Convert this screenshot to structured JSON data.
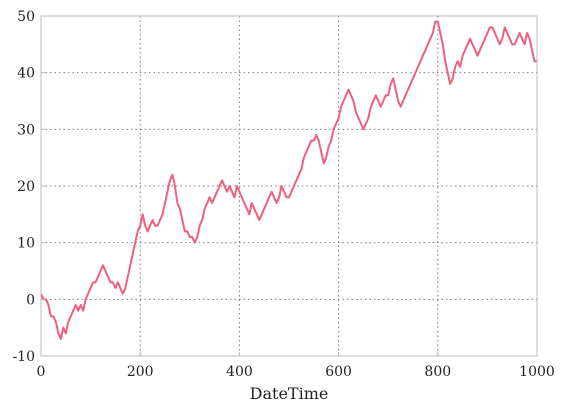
{
  "chart_data": {
    "type": "line",
    "xlabel": "DateTime",
    "ylabel": "",
    "xlim": [
      0,
      1000
    ],
    "ylim": [
      -10,
      50
    ],
    "xticks": [
      0,
      200,
      400,
      600,
      800,
      1000
    ],
    "yticks": [
      -10,
      0,
      10,
      20,
      30,
      40,
      50
    ],
    "grid": true,
    "legend": "none",
    "series": [
      {
        "color": "#f0607e",
        "points": [
          [
            0,
            1
          ],
          [
            5,
            0
          ],
          [
            10,
            0
          ],
          [
            15,
            -1
          ],
          [
            20,
            -3
          ],
          [
            25,
            -3
          ],
          [
            30,
            -4
          ],
          [
            35,
            -6
          ],
          [
            40,
            -7
          ],
          [
            45,
            -5
          ],
          [
            50,
            -6
          ],
          [
            55,
            -4
          ],
          [
            60,
            -3
          ],
          [
            65,
            -2
          ],
          [
            70,
            -1
          ],
          [
            75,
            -2
          ],
          [
            80,
            -1
          ],
          [
            85,
            -2
          ],
          [
            90,
            0
          ],
          [
            95,
            1
          ],
          [
            100,
            2
          ],
          [
            105,
            3
          ],
          [
            110,
            3
          ],
          [
            115,
            4
          ],
          [
            120,
            5
          ],
          [
            125,
            6
          ],
          [
            130,
            5
          ],
          [
            135,
            4
          ],
          [
            140,
            3
          ],
          [
            145,
            3
          ],
          [
            150,
            2
          ],
          [
            155,
            3
          ],
          [
            160,
            2
          ],
          [
            165,
            1
          ],
          [
            170,
            2
          ],
          [
            175,
            4
          ],
          [
            180,
            6
          ],
          [
            185,
            8
          ],
          [
            190,
            10
          ],
          [
            195,
            12
          ],
          [
            200,
            13
          ],
          [
            205,
            15
          ],
          [
            210,
            13
          ],
          [
            215,
            12
          ],
          [
            220,
            13
          ],
          [
            225,
            14
          ],
          [
            230,
            13
          ],
          [
            235,
            13
          ],
          [
            240,
            14
          ],
          [
            245,
            15
          ],
          [
            250,
            17
          ],
          [
            255,
            19
          ],
          [
            260,
            21
          ],
          [
            265,
            22
          ],
          [
            270,
            20
          ],
          [
            275,
            17
          ],
          [
            280,
            16
          ],
          [
            285,
            14
          ],
          [
            290,
            12
          ],
          [
            295,
            12
          ],
          [
            300,
            11
          ],
          [
            305,
            11
          ],
          [
            310,
            10
          ],
          [
            315,
            11
          ],
          [
            320,
            13
          ],
          [
            325,
            14
          ],
          [
            330,
            16
          ],
          [
            335,
            17
          ],
          [
            340,
            18
          ],
          [
            345,
            17
          ],
          [
            350,
            18
          ],
          [
            355,
            19
          ],
          [
            360,
            20
          ],
          [
            365,
            21
          ],
          [
            370,
            20
          ],
          [
            375,
            19
          ],
          [
            380,
            20
          ],
          [
            385,
            19
          ],
          [
            390,
            18
          ],
          [
            395,
            20
          ],
          [
            400,
            19
          ],
          [
            405,
            18
          ],
          [
            410,
            17
          ],
          [
            415,
            16
          ],
          [
            420,
            15
          ],
          [
            425,
            17
          ],
          [
            430,
            16
          ],
          [
            435,
            15
          ],
          [
            440,
            14
          ],
          [
            445,
            15
          ],
          [
            450,
            16
          ],
          [
            455,
            17
          ],
          [
            460,
            18
          ],
          [
            465,
            19
          ],
          [
            470,
            18
          ],
          [
            475,
            17
          ],
          [
            480,
            18
          ],
          [
            485,
            20
          ],
          [
            490,
            19
          ],
          [
            495,
            18
          ],
          [
            500,
            18
          ],
          [
            505,
            19
          ],
          [
            510,
            20
          ],
          [
            515,
            21
          ],
          [
            520,
            22
          ],
          [
            525,
            23
          ],
          [
            530,
            25
          ],
          [
            535,
            26
          ],
          [
            540,
            27
          ],
          [
            545,
            28
          ],
          [
            550,
            28
          ],
          [
            555,
            29
          ],
          [
            560,
            28
          ],
          [
            565,
            26
          ],
          [
            570,
            24
          ],
          [
            575,
            25
          ],
          [
            580,
            27
          ],
          [
            585,
            28
          ],
          [
            590,
            30
          ],
          [
            595,
            31
          ],
          [
            600,
            32
          ],
          [
            605,
            34
          ],
          [
            610,
            35
          ],
          [
            615,
            36
          ],
          [
            620,
            37
          ],
          [
            625,
            36
          ],
          [
            630,
            35
          ],
          [
            635,
            33
          ],
          [
            640,
            32
          ],
          [
            645,
            31
          ],
          [
            650,
            30
          ],
          [
            655,
            31
          ],
          [
            660,
            32
          ],
          [
            665,
            34
          ],
          [
            670,
            35
          ],
          [
            675,
            36
          ],
          [
            680,
            35
          ],
          [
            685,
            34
          ],
          [
            690,
            35
          ],
          [
            695,
            36
          ],
          [
            700,
            36
          ],
          [
            705,
            38
          ],
          [
            710,
            39
          ],
          [
            715,
            37
          ],
          [
            720,
            35
          ],
          [
            725,
            34
          ],
          [
            730,
            35
          ],
          [
            735,
            36
          ],
          [
            740,
            37
          ],
          [
            745,
            38
          ],
          [
            750,
            39
          ],
          [
            755,
            40
          ],
          [
            760,
            41
          ],
          [
            765,
            42
          ],
          [
            770,
            43
          ],
          [
            775,
            44
          ],
          [
            780,
            45
          ],
          [
            785,
            46
          ],
          [
            790,
            47
          ],
          [
            795,
            49
          ],
          [
            800,
            49
          ],
          [
            805,
            47
          ],
          [
            810,
            45
          ],
          [
            815,
            42
          ],
          [
            820,
            40
          ],
          [
            825,
            38
          ],
          [
            830,
            39
          ],
          [
            835,
            41
          ],
          [
            840,
            42
          ],
          [
            845,
            41
          ],
          [
            850,
            43
          ],
          [
            855,
            44
          ],
          [
            860,
            45
          ],
          [
            865,
            46
          ],
          [
            870,
            45
          ],
          [
            875,
            44
          ],
          [
            880,
            43
          ],
          [
            885,
            44
          ],
          [
            890,
            45
          ],
          [
            895,
            46
          ],
          [
            900,
            47
          ],
          [
            905,
            48
          ],
          [
            910,
            48
          ],
          [
            915,
            47
          ],
          [
            920,
            46
          ],
          [
            925,
            45
          ],
          [
            930,
            46
          ],
          [
            935,
            48
          ],
          [
            940,
            47
          ],
          [
            945,
            46
          ],
          [
            950,
            45
          ],
          [
            955,
            45
          ],
          [
            960,
            46
          ],
          [
            965,
            47
          ],
          [
            970,
            46
          ],
          [
            975,
            45
          ],
          [
            980,
            47
          ],
          [
            985,
            46
          ],
          [
            990,
            44
          ],
          [
            995,
            42
          ],
          [
            1000,
            42
          ]
        ]
      }
    ]
  }
}
